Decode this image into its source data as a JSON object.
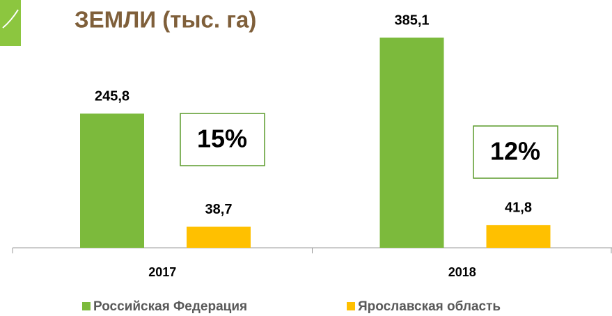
{
  "chart_data": {
    "type": "bar",
    "title": "ЗЕМЛИ (тыс. га)",
    "categories": [
      "2017",
      "2018"
    ],
    "series": [
      {
        "name": "Российская Федерация",
        "color": "#7cba3c",
        "values": [
          245.8,
          385.1
        ],
        "value_labels": [
          "245,8",
          "385,1"
        ]
      },
      {
        "name": "Ярославская область",
        "color": "#ffc000",
        "values": [
          38.7,
          41.8
        ],
        "value_labels": [
          "38,7",
          "41,8"
        ]
      }
    ],
    "annotations": [
      "15%",
      "12%"
    ],
    "legend": "bottom"
  }
}
